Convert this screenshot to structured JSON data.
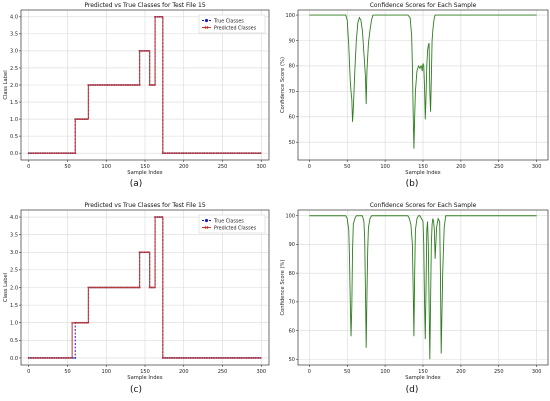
{
  "chart_data": [
    {
      "panel": "(a)",
      "type": "line",
      "title": "Predicted vs True Classes for Test File 15",
      "xlabel": "Sample Index",
      "ylabel": "Class Label",
      "xlim": [
        -10,
        310
      ],
      "ylim": [
        -0.2,
        4.2
      ],
      "xticks": [
        0,
        50,
        100,
        150,
        200,
        250,
        300
      ],
      "yticks": [
        0.0,
        0.5,
        1.0,
        1.5,
        2.0,
        2.5,
        3.0,
        3.5,
        4.0
      ],
      "grid": true,
      "legend_position": "top-right",
      "series": [
        {
          "name": "True Classes",
          "color": "#1f1fbf",
          "marker": "circle",
          "style": "dashed",
          "segments": [
            [
              0,
              60,
              0
            ],
            [
              60,
              77,
              1
            ],
            [
              77,
              143,
              2
            ],
            [
              143,
              156,
              3
            ],
            [
              156,
              163,
              2
            ],
            [
              163,
              173,
              4
            ],
            [
              173,
              300,
              0
            ]
          ]
        },
        {
          "name": "Predicted Classes",
          "color": "#c0392b",
          "marker": "x",
          "style": "solid",
          "segments": [
            [
              0,
              60,
              0
            ],
            [
              60,
              77,
              1
            ],
            [
              77,
              143,
              2
            ],
            [
              143,
              156,
              3
            ],
            [
              156,
              163,
              2
            ],
            [
              163,
              173,
              4
            ],
            [
              173,
              300,
              0
            ]
          ]
        }
      ]
    },
    {
      "panel": "(b)",
      "type": "line",
      "title": "Confidence Scores for Each Sample",
      "xlabel": "Sample Index",
      "ylabel": "Confidence Score (%)",
      "xlim": [
        -15,
        315
      ],
      "ylim": [
        43,
        102
      ],
      "xticks": [
        0,
        50,
        100,
        150,
        200,
        250,
        300
      ],
      "yticks": [
        50,
        60,
        70,
        80,
        90,
        100
      ],
      "grid": true,
      "series": [
        {
          "color": "#2e7d1f",
          "x": [
            0,
            48,
            50,
            52,
            54,
            55,
            56,
            57,
            58,
            60,
            62,
            64,
            66,
            68,
            70,
            72,
            74,
            75,
            76,
            78,
            80,
            82,
            84,
            100,
            130,
            133,
            135,
            136,
            137,
            138,
            139,
            140,
            142,
            144,
            146,
            147,
            148,
            149,
            150,
            151,
            152,
            153,
            154,
            155,
            156,
            157,
            158,
            159,
            160,
            161,
            162,
            163,
            164,
            165,
            166,
            168,
            170,
            300
          ],
          "y": [
            100,
            100,
            98,
            88,
            74,
            70,
            67,
            58,
            63,
            78,
            90,
            97,
            99,
            98,
            94,
            85,
            76,
            65,
            78,
            89,
            94,
            98,
            100,
            100,
            100,
            99,
            92,
            80,
            62,
            47.5,
            60,
            70,
            78,
            80,
            79,
            80,
            80,
            78,
            81,
            80,
            72,
            59,
            68,
            80,
            86,
            88,
            89,
            70,
            62,
            75,
            90,
            94,
            97,
            99,
            100,
            100,
            100,
            100
          ]
        }
      ]
    },
    {
      "panel": "(c)",
      "type": "line",
      "title": "Predicted vs True Classes for Test File 15",
      "xlabel": "Sample Index",
      "ylabel": "Class Label",
      "xlim": [
        -10,
        310
      ],
      "ylim": [
        -0.2,
        4.2
      ],
      "xticks": [
        0,
        50,
        100,
        150,
        200,
        250,
        300
      ],
      "yticks": [
        0.0,
        0.5,
        1.0,
        1.5,
        2.0,
        2.5,
        3.0,
        3.5,
        4.0
      ],
      "grid": true,
      "legend_position": "top-right",
      "series": [
        {
          "name": "True Classes",
          "color": "#1f1fbf",
          "marker": "circle",
          "style": "dashed",
          "segments": [
            [
              0,
              60,
              0
            ],
            [
              60,
              77,
              1
            ],
            [
              77,
              143,
              2
            ],
            [
              143,
              156,
              3
            ],
            [
              156,
              163,
              2
            ],
            [
              163,
              173,
              4
            ],
            [
              173,
              300,
              0
            ]
          ]
        },
        {
          "name": "Predicted Classes",
          "color": "#c0392b",
          "marker": "x",
          "style": "solid",
          "segments": [
            [
              0,
              56,
              0
            ],
            [
              56,
              77,
              1
            ],
            [
              77,
              143,
              2
            ],
            [
              143,
              156,
              3
            ],
            [
              156,
              163,
              2
            ],
            [
              163,
              173,
              4
            ],
            [
              173,
              300,
              0
            ]
          ]
        }
      ]
    },
    {
      "panel": "(d)",
      "type": "line",
      "title": "Confidence Scores for Each Sample",
      "xlabel": "Sample Index",
      "ylabel": "Confidence Score (%)",
      "xlim": [
        -15,
        315
      ],
      "ylim": [
        48,
        102
      ],
      "xticks": [
        0,
        50,
        100,
        150,
        200,
        250,
        300
      ],
      "yticks": [
        50,
        60,
        70,
        80,
        90,
        100
      ],
      "grid": true,
      "series": [
        {
          "color": "#2e7d1f",
          "x": [
            0,
            48,
            50,
            52,
            53,
            54,
            55,
            56,
            57,
            58,
            60,
            62,
            64,
            70,
            72,
            73,
            74,
            75,
            76,
            77,
            78,
            80,
            82,
            84,
            130,
            132,
            134,
            136,
            137,
            138,
            139,
            140,
            142,
            144,
            146,
            148,
            150,
            151,
            152,
            153,
            154,
            155,
            156,
            157,
            158,
            159,
            160,
            161,
            162,
            163,
            164,
            165,
            166,
            168,
            170,
            172,
            173,
            174,
            176,
            178,
            180,
            300
          ],
          "y": [
            100,
            100,
            99,
            95,
            85,
            70,
            58,
            68,
            88,
            97,
            99,
            100,
            100,
            100,
            98,
            92,
            75,
            54,
            72,
            88,
            96,
            99,
            100,
            100,
            100,
            99,
            97,
            90,
            75,
            58,
            80,
            95,
            99,
            100,
            100,
            99,
            98,
            90,
            70,
            57,
            75,
            95,
            98,
            90,
            70,
            50,
            70,
            90,
            97,
            99,
            98,
            95,
            85,
            96,
            99,
            98,
            80,
            52,
            80,
            96,
            100,
            100
          ]
        }
      ]
    }
  ],
  "panel_labels": [
    "(a)",
    "(b)",
    "(c)",
    "(d)"
  ]
}
